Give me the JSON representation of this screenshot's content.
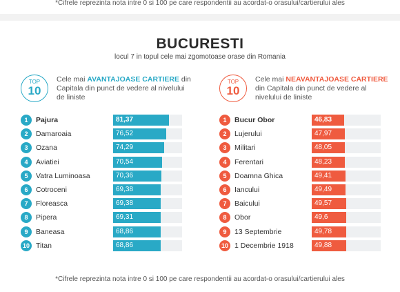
{
  "top_note": "*Cifrele reprezinta nota intre 0 si 100 pe care respondentii au acordat-o orasului/cartierului ales",
  "title": "BUCURESTI",
  "subtitle": "locul 7 in topul cele mai zgomotoase orase din Romania",
  "footnote": "*Cifrele reprezinta nota intre 0 si 100 pe care respondentii au acordat-o orasului/cartierului ales",
  "colors": {
    "left_accent": "#29a9c6",
    "right_accent": "#ef5b3f",
    "track": "#eef0f2"
  },
  "chart_data": [
    {
      "type": "bar",
      "badge_top": "TOP",
      "badge_num": "10",
      "heading_pre": "Cele mai ",
      "heading_bold": "AVANTAJOASE CARTIERE",
      "heading_post": " din Capitala din punct de vedere al nivelului de liniste",
      "xlim": [
        0,
        100
      ],
      "categories": [
        "Pajura",
        "Damaroaia",
        "Ozana",
        "Aviatiei",
        "Vatra Luminoasa",
        "Cotroceni",
        "Floreasca",
        "Pipera",
        "Baneasa",
        "Titan"
      ],
      "values": [
        81.37,
        76.52,
        74.29,
        70.54,
        70.36,
        69.38,
        69.38,
        69.31,
        68.86,
        68.86
      ],
      "value_labels": [
        "81,37",
        "76,52",
        "74,29",
        "70,54",
        "70,36",
        "69,38",
        "69,38",
        "69,31",
        "68,86",
        "68,86"
      ]
    },
    {
      "type": "bar",
      "badge_top": "TOP",
      "badge_num": "10",
      "heading_pre": "Cele mai ",
      "heading_bold": "NEAVANTAJOASE CARTIERE",
      "heading_post": " din Capitala din punct de vedere al nivelului de liniste",
      "xlim": [
        0,
        100
      ],
      "categories": [
        "Bucur Obor",
        "Lujerului",
        "Militari",
        "Ferentari",
        "Doamna Ghica",
        "Iancului",
        "Baicului",
        "Obor",
        "13 Septembrie",
        "1 Decembrie 1918"
      ],
      "values": [
        46.83,
        47.97,
        48.05,
        48.23,
        49.41,
        49.49,
        49.57,
        49.6,
        49.78,
        49.88
      ],
      "value_labels": [
        "46,83",
        "47,97",
        "48,05",
        "48,23",
        "49,41",
        "49,49",
        "49,57",
        "49,6",
        "49,78",
        "49,88"
      ]
    }
  ]
}
